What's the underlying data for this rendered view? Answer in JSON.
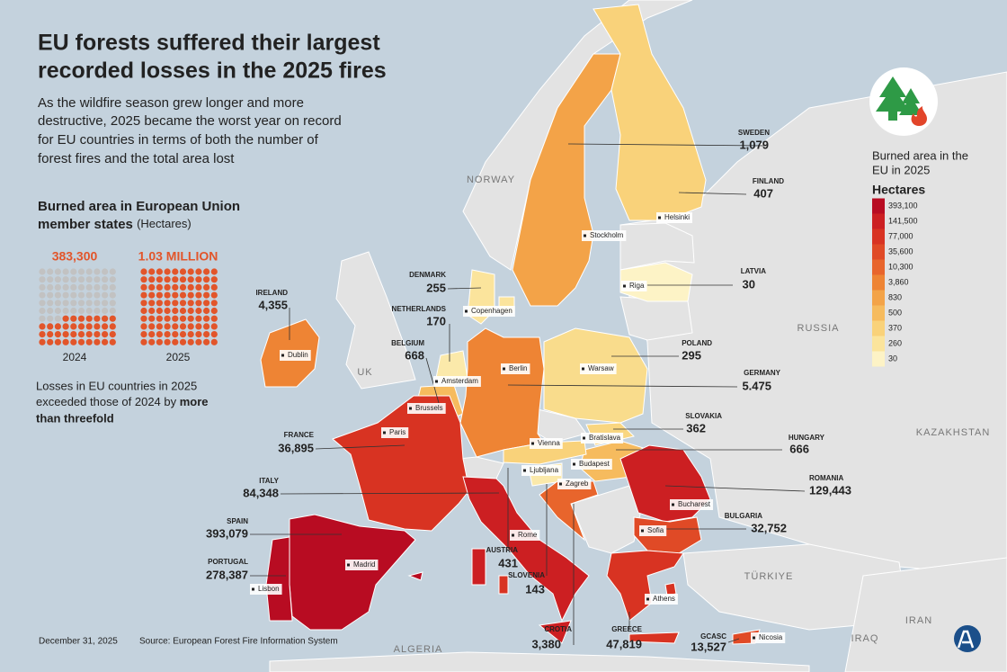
{
  "title": [
    "EU forests suffered their largest",
    "recorded losses in the 2025 fires"
  ],
  "subtitle": [
    "As the wildfire season grew longer and more",
    "destructive, 2025 became the worst year on record",
    "for EU countries in terms of both the number of",
    "forest fires and the total area lost"
  ],
  "section": {
    "heading": [
      "Burned area in European Union",
      "member states"
    ],
    "unit": "(Hectares)"
  },
  "comparison": [
    {
      "value": "383,300",
      "year": "2024"
    },
    {
      "value": "1.03 MILLION",
      "year": "2025"
    }
  ],
  "note": {
    "lines": [
      "Losses in EU countries in 2025",
      "exceeded those of 2024 by"
    ],
    "emphasis": [
      "more",
      "than threefold"
    ]
  },
  "legend": {
    "title": [
      "Burned area in the",
      "EU in 2025"
    ],
    "unit": "Hectares",
    "labels": [
      "393,100",
      "141,500",
      "77,000",
      "35,600",
      "10,300",
      "3,860",
      "830",
      "500",
      "370",
      "260",
      "30"
    ],
    "colors": [
      "#b80c22",
      "#cc1f22",
      "#d83322",
      "#e04a26",
      "#e8652c",
      "#ee8434",
      "#f3a348",
      "#f6bb5e",
      "#f9d27a",
      "#fbe49c",
      "#fdf3c6"
    ]
  },
  "countries": [
    {
      "name": "SWEDEN",
      "value": "1,079",
      "color": "#f3a348"
    },
    {
      "name": "FINLAND",
      "value": "407",
      "color": "#f9d27a"
    },
    {
      "name": "LATVIA",
      "value": "30",
      "color": "#fdf3c6"
    },
    {
      "name": "DENMARK",
      "value": "255",
      "color": "#fbe49c"
    },
    {
      "name": "IRELAND",
      "value": "4,355",
      "color": "#ee8434"
    },
    {
      "name": "NETHERLANDS",
      "value": "170",
      "color": "#fbe9aa"
    },
    {
      "name": "BELGIUM",
      "value": "668",
      "color": "#f6bb5e"
    },
    {
      "name": "POLAND",
      "value": "295",
      "color": "#f9dc8c"
    },
    {
      "name": "GERMANY",
      "value": "5.475",
      "color": "#ee8434"
    },
    {
      "name": "SLOVAKIA",
      "value": "362",
      "color": "#f9d680"
    },
    {
      "name": "HUNGARY",
      "value": "666",
      "color": "#f6bb5e"
    },
    {
      "name": "FRANCE",
      "value": "36,895",
      "color": "#d83322"
    },
    {
      "name": "ROMANIA",
      "value": "129,443",
      "color": "#cc1f22"
    },
    {
      "name": "ITALY",
      "value": "84,348",
      "color": "#cc1f22"
    },
    {
      "name": "SPAIN",
      "value": "393,079",
      "color": "#b80c22"
    },
    {
      "name": "PORTUGAL",
      "value": "278,387",
      "color": "#b80c22"
    },
    {
      "name": "AUSTRIA",
      "value": "431",
      "color": "#f9d27a"
    },
    {
      "name": "SLOVENIA",
      "value": "143",
      "color": "#fbe9aa"
    },
    {
      "name": "CROTIA",
      "value": "3,380",
      "color": "#e8652c"
    },
    {
      "name": "BULGARIA",
      "value": "32,752",
      "color": "#e04a26"
    },
    {
      "name": "GREECE",
      "value": "47,819",
      "color": "#d83322"
    },
    {
      "name": "GCASC",
      "value": "13,527",
      "color": "#e04a26"
    }
  ],
  "cities": [
    "Helsinki",
    "Stockholm",
    "Riga",
    "Copenhagen",
    "Dublin",
    "Warsaw",
    "Berlin",
    "Amsterdam",
    "Brussels",
    "Paris",
    "Bratislava",
    "Vienna",
    "Budapest",
    "Ljubljana",
    "Zagreb",
    "Bucharest",
    "Sofia",
    "Rome",
    "Madrid",
    "Lisbon",
    "Athens",
    "Nicosia"
  ],
  "regions": [
    "NORWAY",
    "UK",
    "RUSSIA",
    "KAZAKHSTAN",
    "TÜRKIYE",
    "IRAN",
    "IRAQ",
    "ALGERIA"
  ],
  "footer": {
    "date": "December 31, 2025",
    "source": "Source: European Forest Fire Information System"
  }
}
